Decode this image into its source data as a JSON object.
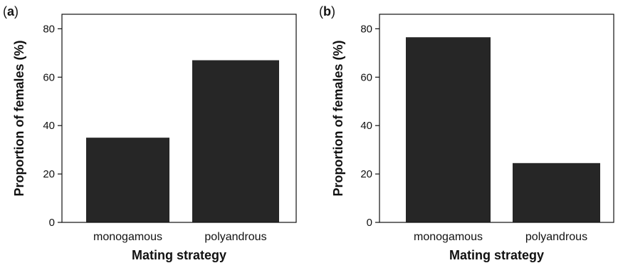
{
  "chart_data": [
    {
      "type": "bar",
      "panel_label": "a",
      "categories": [
        "monogamous",
        "polyandrous"
      ],
      "values": [
        35,
        67
      ],
      "xlabel": "Mating strategy",
      "ylabel": "Proportion of females (%)",
      "ylim": [
        0,
        86
      ],
      "yticks": [
        0,
        20,
        40,
        60,
        80
      ],
      "bar_color": "#262626",
      "grid": false
    },
    {
      "type": "bar",
      "panel_label": "b",
      "categories": [
        "monogamous",
        "polyandrous"
      ],
      "values": [
        76.5,
        24.5
      ],
      "xlabel": "Mating strategy",
      "ylabel": "Proportion of females (%)",
      "ylim": [
        0,
        86
      ],
      "yticks": [
        0,
        20,
        40,
        60,
        80
      ],
      "bar_color": "#262626",
      "grid": false
    }
  ]
}
